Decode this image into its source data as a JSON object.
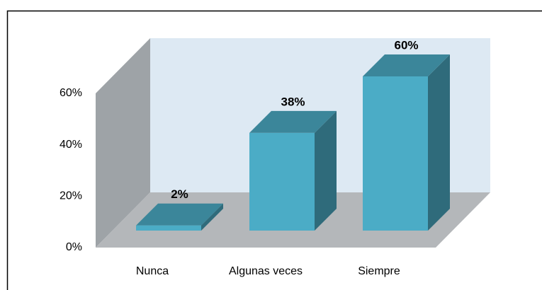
{
  "chart_data": {
    "type": "bar3d",
    "categories": [
      "Nunca",
      "Algunas veces",
      "Siempre"
    ],
    "values": [
      2,
      38,
      60
    ],
    "value_labels": [
      "2%",
      "38%",
      "60%"
    ],
    "color": "#4bacc6",
    "ylim": [
      0,
      60
    ],
    "yticks": [
      {
        "value": 0,
        "label": "0%"
      },
      {
        "value": 20,
        "label": "20%"
      },
      {
        "value": 40,
        "label": "40%"
      },
      {
        "value": 60,
        "label": "60%"
      }
    ],
    "grid": false
  }
}
